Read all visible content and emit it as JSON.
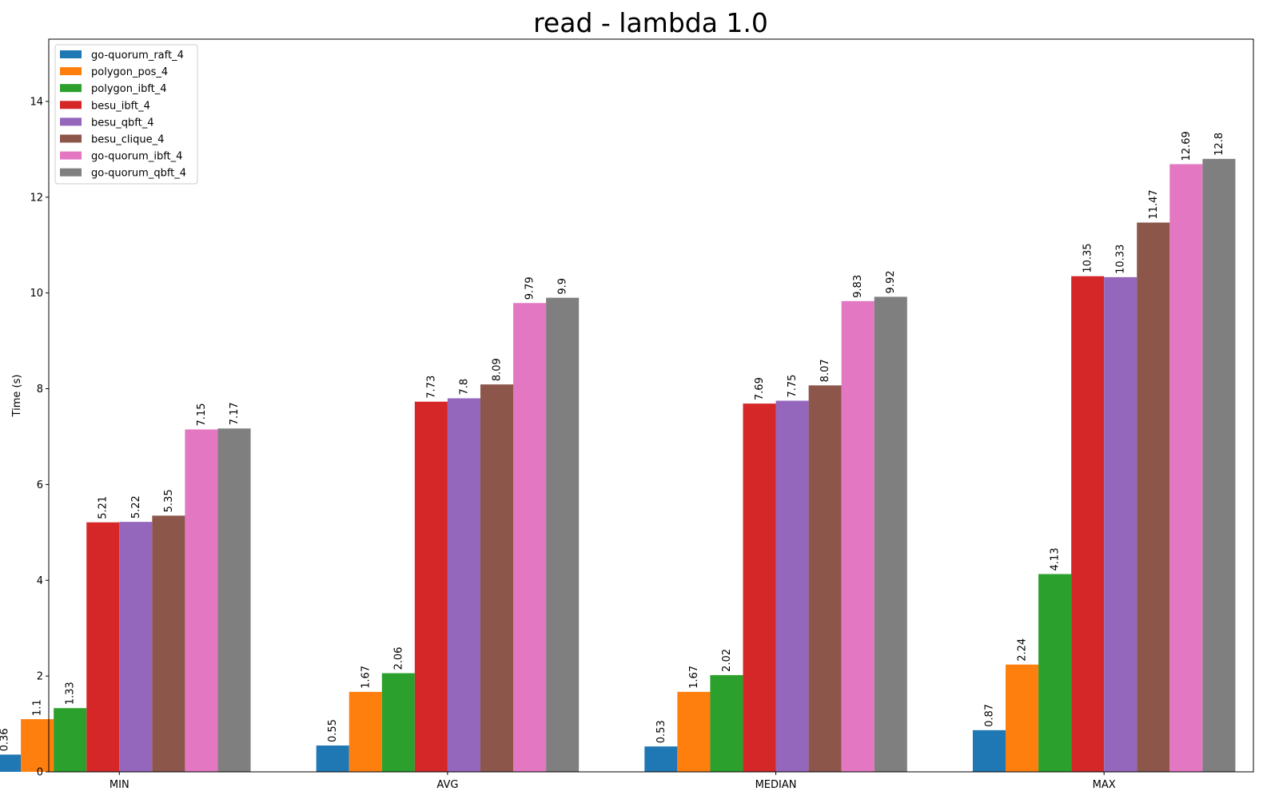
{
  "chart_data": {
    "type": "bar",
    "title": "read - lambda 1.0",
    "xlabel": "",
    "ylabel": "Time (s)",
    "ylim": [
      0,
      15.3
    ],
    "yticks": [
      0,
      2,
      4,
      6,
      8,
      10,
      12,
      14
    ],
    "categories": [
      "MIN",
      "AVG",
      "MEDIAN",
      "MAX"
    ],
    "legend_position": "top-left",
    "grid": false,
    "series": [
      {
        "name": "go-quorum_raft_4",
        "color": "#1f77b4",
        "values": [
          0.36,
          0.55,
          0.53,
          0.87
        ]
      },
      {
        "name": "polygon_pos_4",
        "color": "#ff7f0e",
        "values": [
          1.1,
          1.67,
          1.67,
          2.24
        ]
      },
      {
        "name": "polygon_ibft_4",
        "color": "#2ca02c",
        "values": [
          1.33,
          2.06,
          2.02,
          4.13
        ]
      },
      {
        "name": "besu_ibft_4",
        "color": "#d62728",
        "values": [
          5.21,
          7.73,
          7.69,
          10.35
        ]
      },
      {
        "name": "besu_qbft_4",
        "color": "#9467bd",
        "values": [
          5.22,
          7.8,
          7.75,
          10.33
        ]
      },
      {
        "name": "besu_clique_4",
        "color": "#8c564b",
        "values": [
          5.35,
          8.09,
          8.07,
          11.47
        ]
      },
      {
        "name": "go-quorum_ibft_4",
        "color": "#e377c2",
        "values": [
          7.15,
          9.79,
          9.83,
          12.69
        ]
      },
      {
        "name": "go-quorum_qbft_4",
        "color": "#7f7f7f",
        "values": [
          7.17,
          9.9,
          9.92,
          12.8
        ]
      }
    ]
  }
}
